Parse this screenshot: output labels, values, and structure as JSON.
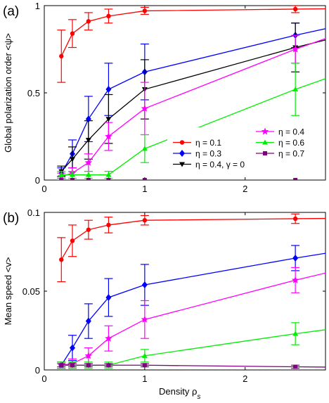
{
  "chart_data": [
    {
      "type": "line",
      "panel_label": "(a)",
      "ylabel": "Global polarization order <ψ>",
      "xlim": [
        0,
        2.8
      ],
      "ylim": [
        0,
        1
      ],
      "xticks": [
        0,
        1,
        2
      ],
      "xtick_labels": [
        "0",
        "1",
        "2"
      ],
      "yticks": [
        0,
        0.5,
        1
      ],
      "ytick_labels": [
        "0",
        "0.5",
        "1"
      ],
      "grid": false,
      "legend_position": "bottom-right",
      "series": [
        {
          "name": "η = 0.1",
          "color": "#ff0000",
          "marker": "circle",
          "x": [
            0.17,
            0.28,
            0.44,
            0.64,
            1.0,
            2.5
          ],
          "y": [
            0.71,
            0.84,
            0.91,
            0.94,
            0.97,
            0.98
          ],
          "err": [
            0.15,
            0.08,
            0.05,
            0.04,
            0.02,
            0.02
          ]
        },
        {
          "name": "η = 0.3",
          "color": "#0000ff",
          "marker": "diamond",
          "x": [
            0.17,
            0.28,
            0.44,
            0.64,
            1.0,
            2.5
          ],
          "y": [
            0.04,
            0.15,
            0.35,
            0.52,
            0.62,
            0.83
          ],
          "err": [
            0.03,
            0.08,
            0.13,
            0.15,
            0.16,
            0.07
          ]
        },
        {
          "name": "η = 0.4, γ = 0",
          "color": "#000000",
          "marker": "triangle-down",
          "x": [
            0.17,
            0.28,
            0.44,
            0.64,
            1.0,
            2.5
          ],
          "y": [
            0.05,
            0.12,
            0.23,
            0.35,
            0.52,
            0.76
          ],
          "err": [
            0.03,
            0.07,
            0.11,
            0.14,
            0.17,
            0.14
          ]
        },
        {
          "name": "η = 0.4",
          "color": "#ff00ff",
          "marker": "star",
          "x": [
            0.17,
            0.28,
            0.44,
            0.64,
            1.0,
            2.5
          ],
          "y": [
            0.02,
            0.04,
            0.1,
            0.25,
            0.41,
            0.75
          ],
          "err": [
            0.02,
            0.03,
            0.05,
            0.08,
            0.15,
            0.08
          ]
        },
        {
          "name": "η = 0.6",
          "color": "#00ee00",
          "marker": "triangle-up",
          "x": [
            0.17,
            0.28,
            0.44,
            0.64,
            1.0,
            2.5
          ],
          "y": [
            0.03,
            0.03,
            0.03,
            0.03,
            0.18,
            0.52
          ],
          "err": [
            0.02,
            0.02,
            0.02,
            0.02,
            0.08,
            0.15
          ]
        },
        {
          "name": "η = 0.7",
          "color": "#800080",
          "marker": "square",
          "x": [
            0.17,
            0.28,
            0.44,
            0.64,
            1.0,
            2.5
          ],
          "y": [
            0.0,
            0.0,
            0.0,
            0.0,
            0.0,
            0.0
          ],
          "err": [
            0.0,
            0.0,
            0.0,
            0.0,
            0.0,
            0.0
          ]
        }
      ]
    },
    {
      "type": "line",
      "panel_label": "(b)",
      "xlabel": "Density  ρs",
      "ylabel": "Mean speed <v>",
      "xlim": [
        0,
        2.8
      ],
      "ylim": [
        0,
        0.1
      ],
      "xticks": [
        0,
        1,
        2
      ],
      "xtick_labels": [
        "0",
        "1",
        "2"
      ],
      "yticks": [
        0,
        0.05,
        0.1
      ],
      "ytick_labels": [
        "0",
        "0.05",
        "0.1"
      ],
      "grid": false,
      "series": [
        {
          "name": "η = 0.1",
          "color": "#ff0000",
          "marker": "circle",
          "x": [
            0.17,
            0.28,
            0.44,
            0.64,
            1.0,
            2.5
          ],
          "y": [
            0.07,
            0.082,
            0.089,
            0.092,
            0.095,
            0.096
          ],
          "err": [
            0.014,
            0.01,
            0.006,
            0.005,
            0.003,
            0.003
          ]
        },
        {
          "name": "η = 0.3",
          "color": "#0000ff",
          "marker": "diamond",
          "x": [
            0.17,
            0.28,
            0.44,
            0.64,
            1.0,
            2.5
          ],
          "y": [
            0.003,
            0.014,
            0.031,
            0.046,
            0.054,
            0.071
          ],
          "err": [
            0.002,
            0.008,
            0.011,
            0.012,
            0.013,
            0.008
          ]
        },
        {
          "name": "η = 0.4",
          "color": "#ff00ff",
          "marker": "star",
          "x": [
            0.17,
            0.28,
            0.44,
            0.64,
            1.0,
            2.5
          ],
          "y": [
            0.003,
            0.004,
            0.009,
            0.02,
            0.032,
            0.057
          ],
          "err": [
            0.002,
            0.003,
            0.005,
            0.008,
            0.012,
            0.008
          ]
        },
        {
          "name": "η = 0.6",
          "color": "#00ee00",
          "marker": "triangle-up",
          "x": [
            0.17,
            0.28,
            0.44,
            0.64,
            1.0,
            2.5
          ],
          "y": [
            0.003,
            0.003,
            0.003,
            0.003,
            0.009,
            0.023
          ],
          "err": [
            0.002,
            0.002,
            0.002,
            0.002,
            0.004,
            0.007
          ]
        },
        {
          "name": "η = 0.7",
          "color": "#800080",
          "marker": "square",
          "x": [
            0.17,
            0.28,
            0.44,
            0.64,
            1.0,
            2.5
          ],
          "y": [
            0.003,
            0.003,
            0.003,
            0.003,
            0.003,
            0.002
          ],
          "err": [
            0.001,
            0.001,
            0.001,
            0.001,
            0.001,
            0.001
          ]
        }
      ]
    }
  ]
}
